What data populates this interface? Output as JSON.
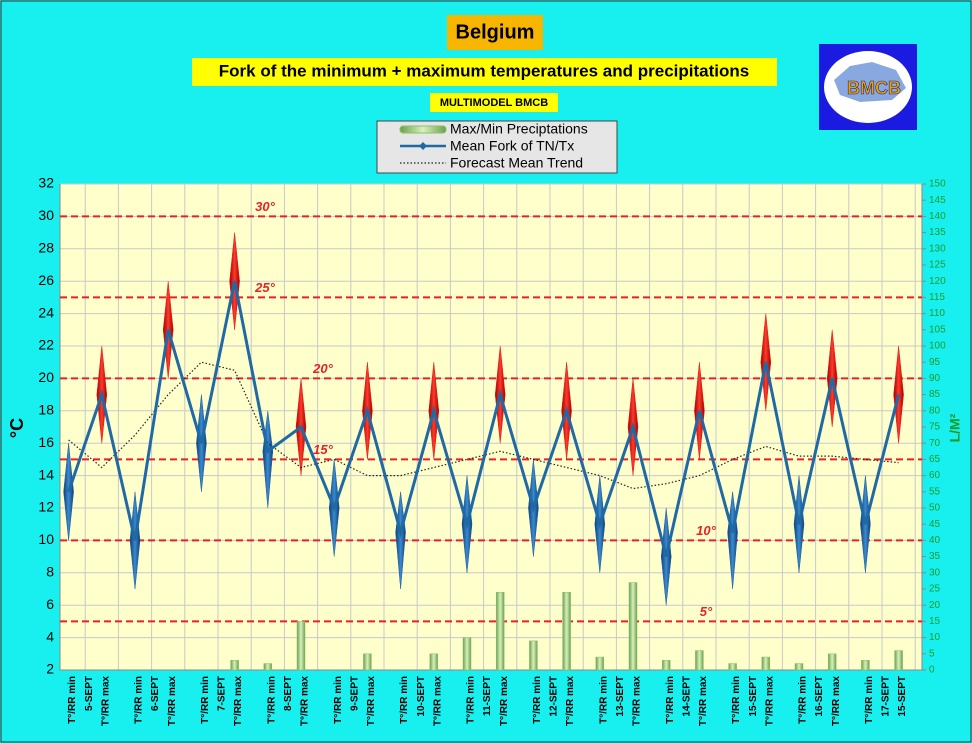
{
  "chart_data": {
    "type": "fork",
    "title": "Belgium",
    "subtitle": "Fork of the minimum + maximum temperatures and precipitations",
    "source": "MULTIMODEL BMCB",
    "logo_text": "BMCB",
    "y_label": "°C",
    "y2_label": "L/M²",
    "categories": [
      "T°/RR min",
      "T°/RR max",
      "T°/RR min",
      "T°/RR max",
      "T°/RR min",
      "T°/RR max",
      "T°/RR min",
      "T°/RR max",
      "T°/RR min",
      "T°/RR max",
      "T°/RR min",
      "T°/RR max",
      "T°/RR min",
      "T°/RR max",
      "T°/RR min",
      "T°/RR max",
      "T°/RR min",
      "T°/RR max",
      "T°/RR min",
      "T°/RR max",
      "T°/RR min",
      "T°/RR max",
      "T°/RR min",
      "T°/RR max",
      "T°/RR min",
      "15-SEPT"
    ],
    "dates": [
      "5-SEPT",
      "6-SEPT",
      "7-SEPT",
      "8-SEPT",
      "9-SEPT",
      "10-SEPT",
      "11-SEPT",
      "12-SEPT",
      "13-SEPT",
      "14-SEPT",
      "15-SEPT",
      "16-SEPT",
      "17-SEPT"
    ],
    "ylim": [
      2,
      32
    ],
    "yticks": [
      2,
      4,
      6,
      8,
      10,
      12,
      14,
      16,
      18,
      20,
      22,
      24,
      26,
      28,
      30,
      32
    ],
    "y2lim": [
      0,
      150
    ],
    "y2ticks": [
      0,
      5,
      10,
      15,
      20,
      25,
      30,
      35,
      40,
      45,
      50,
      55,
      60,
      65,
      70,
      75,
      80,
      85,
      90,
      95,
      100,
      105,
      110,
      115,
      120,
      125,
      130,
      135,
      140,
      145,
      150
    ],
    "grid": true,
    "fork_colors": [
      "#1a5c9e",
      "#e01818"
    ],
    "reference_lines": [
      {
        "value": 30,
        "label": "30°"
      },
      {
        "value": 25,
        "label": "25°"
      },
      {
        "value": 20,
        "label": "20°"
      },
      {
        "value": 15,
        "label": "15°"
      },
      {
        "value": 10,
        "label": "10°"
      },
      {
        "value": 5,
        "label": "5°"
      }
    ],
    "series": [
      {
        "name": "Max/Min Preciptations",
        "color": "#8cc06a",
        "axis": "y2",
        "values": [
          0,
          0,
          0,
          0,
          0,
          3,
          2,
          15,
          0,
          5,
          0,
          5,
          10,
          24,
          9,
          24,
          4,
          27,
          3,
          6,
          2,
          4,
          2,
          5,
          3,
          6
        ]
      },
      {
        "name": "Mean Fork of TN/Tx",
        "color": "#1f6aa5",
        "values": [
          13,
          19,
          10,
          23,
          16,
          26,
          15.5,
          17,
          12,
          18,
          10.5,
          18,
          11,
          19,
          12,
          18,
          11,
          17,
          9,
          18,
          10.5,
          21,
          11,
          20,
          11,
          19
        ],
        "low": [
          10,
          16,
          7,
          20,
          13,
          23,
          12,
          14,
          9,
          15,
          7,
          15,
          8,
          16,
          9,
          15,
          8,
          14,
          6,
          15,
          7,
          18,
          8,
          17,
          8,
          16
        ],
        "high": [
          16,
          22,
          13,
          26,
          19,
          29,
          18,
          20,
          15,
          21,
          13,
          21,
          14,
          22,
          15,
          21,
          14,
          20,
          12,
          21,
          13,
          24,
          14,
          23,
          14,
          22
        ]
      },
      {
        "name": "Forecast Mean Trend",
        "color": "#222222",
        "values": [
          16.2,
          14.5,
          16.5,
          19,
          21,
          20.5,
          16,
          14.5,
          15,
          14,
          14,
          14.5,
          15,
          15.5,
          15,
          14.5,
          14,
          13.2,
          13.5,
          14,
          15,
          15.8,
          15.2,
          15.2,
          15,
          14.8
        ]
      }
    ]
  }
}
